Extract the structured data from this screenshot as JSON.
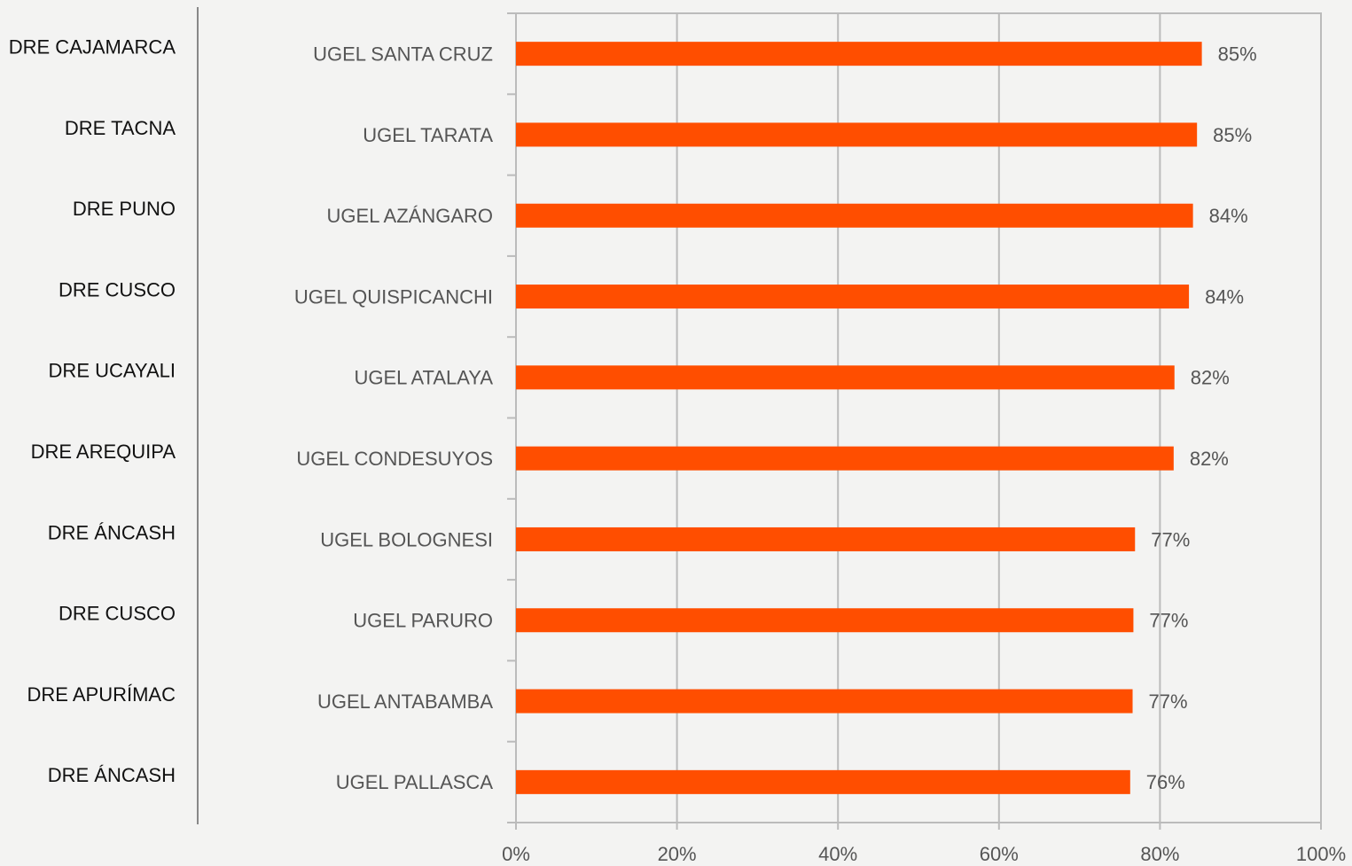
{
  "chart_data": {
    "type": "barh",
    "groups": [
      "DRE CAJAMARCA",
      "DRE TACNA",
      "DRE PUNO",
      "DRE CUSCO",
      "DRE UCAYALI",
      "DRE AREQUIPA",
      "DRE ÁNCASH",
      "DRE CUSCO",
      "DRE APURÍMAC",
      "DRE ÁNCASH"
    ],
    "categories": [
      "UGEL SANTA CRUZ",
      "UGEL TARATA",
      "UGEL AZÁNGARO",
      "UGEL QUISPICANCHI",
      "UGEL ATALAYA",
      "UGEL CONDESUYOS",
      "UGEL BOLOGNESI",
      "UGEL PARURO",
      "UGEL ANTABAMBA",
      "UGEL PALLASCA"
    ],
    "values": [
      85.2,
      84.6,
      84.1,
      83.6,
      81.8,
      81.7,
      76.9,
      76.7,
      76.6,
      76.3
    ],
    "value_labels": [
      "85%",
      "85%",
      "84%",
      "84%",
      "82%",
      "82%",
      "77%",
      "77%",
      "77%",
      "76%"
    ],
    "color": "#ff4e00",
    "xlim": [
      0,
      100
    ],
    "xticks": [
      {
        "value": 0,
        "label": "0%"
      },
      {
        "value": 20,
        "label": "20%"
      },
      {
        "value": 40,
        "label": "40%"
      },
      {
        "value": 60,
        "label": "60%"
      },
      {
        "value": 80,
        "label": "80%"
      },
      {
        "value": 100,
        "label": "100%"
      }
    ],
    "grid": true
  }
}
